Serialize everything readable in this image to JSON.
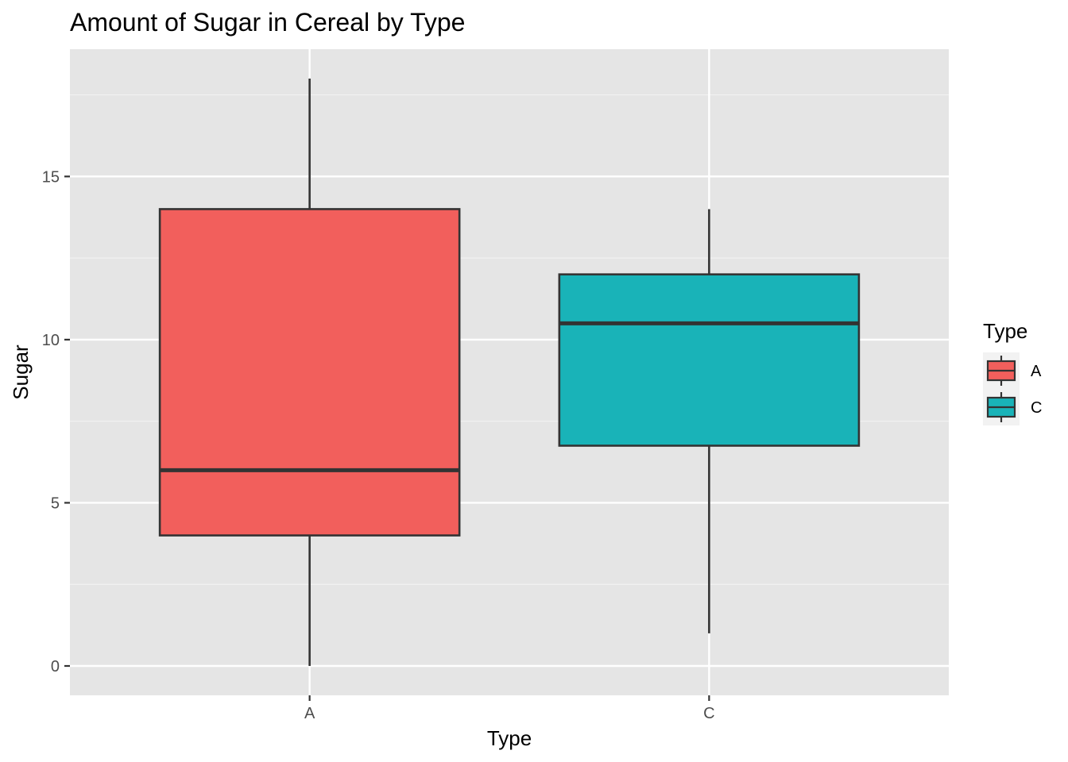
{
  "chart_data": {
    "type": "boxplot",
    "title": "Amount of Sugar in Cereal by Type",
    "xlabel": "Type",
    "ylabel": "Sugar",
    "categories": [
      "A",
      "C"
    ],
    "boxes": [
      {
        "category": "A",
        "min": 0,
        "q1": 4,
        "median": 6,
        "q3": 14,
        "max": 18,
        "color": "#F25F5C"
      },
      {
        "category": "C",
        "min": 1,
        "q1": 6.75,
        "median": 10.5,
        "q3": 12,
        "max": 14,
        "color": "#19B3B8"
      }
    ],
    "yticks": [
      0,
      5,
      10,
      15
    ],
    "ytick_labels": [
      "0",
      "5",
      "10",
      "15"
    ],
    "ylim": [
      -0.9,
      18.9
    ],
    "grid": true,
    "panel_background": "#E5E5E5",
    "legend": {
      "title": "Type",
      "position": "right",
      "entries": [
        {
          "label": "A",
          "color": "#F25F5C"
        },
        {
          "label": "C",
          "color": "#19B3B8"
        }
      ]
    }
  }
}
